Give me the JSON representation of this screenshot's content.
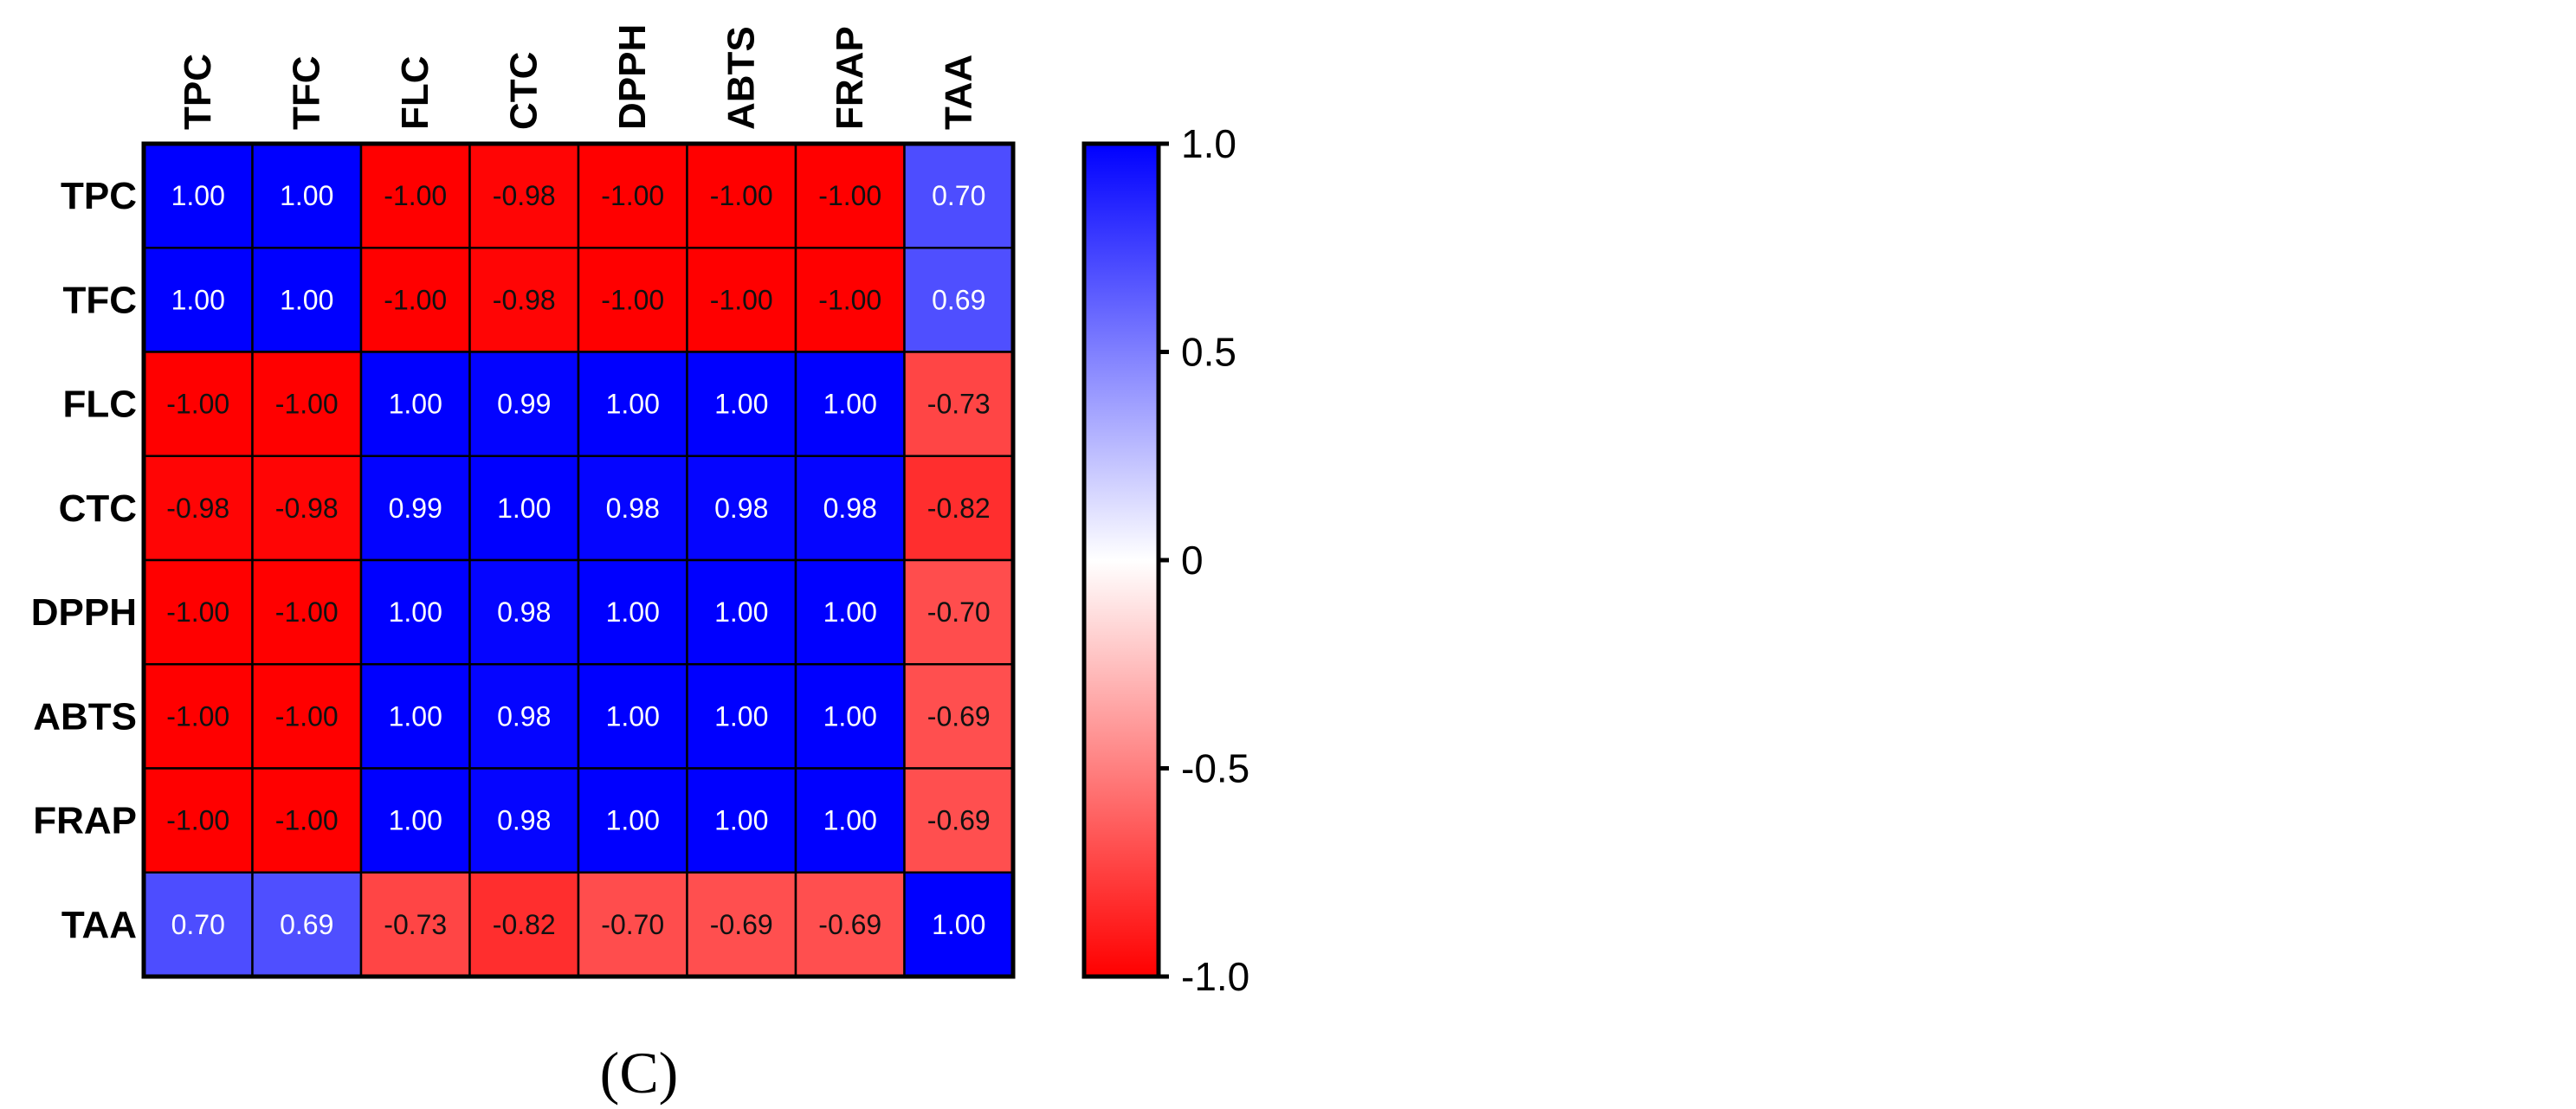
{
  "panel_label": "(C)",
  "chart_data": {
    "type": "heatmap",
    "title": "",
    "xlabel": "",
    "ylabel": "",
    "rows": [
      "TPC",
      "TFC",
      "FLC",
      "CTC",
      "DPPH",
      "ABTS",
      "FRAP",
      "TAA"
    ],
    "columns": [
      "TPC",
      "TFC",
      "FLC",
      "CTC",
      "DPPH",
      "ABTS",
      "FRAP",
      "TAA"
    ],
    "values": [
      [
        1.0,
        1.0,
        -1.0,
        -0.98,
        -1.0,
        -1.0,
        -1.0,
        0.7
      ],
      [
        1.0,
        1.0,
        -1.0,
        -0.98,
        -1.0,
        -1.0,
        -1.0,
        0.69
      ],
      [
        -1.0,
        -1.0,
        1.0,
        0.99,
        1.0,
        1.0,
        1.0,
        -0.73
      ],
      [
        -0.98,
        -0.98,
        0.99,
        1.0,
        0.98,
        0.98,
        0.98,
        -0.82
      ],
      [
        -1.0,
        -1.0,
        1.0,
        0.98,
        1.0,
        1.0,
        1.0,
        -0.7
      ],
      [
        -1.0,
        -1.0,
        1.0,
        0.98,
        1.0,
        1.0,
        1.0,
        -0.69
      ],
      [
        -1.0,
        -1.0,
        1.0,
        0.98,
        1.0,
        1.0,
        1.0,
        -0.69
      ],
      [
        0.7,
        0.69,
        -0.73,
        -0.82,
        -0.7,
        -0.69,
        -0.69,
        1.0
      ]
    ],
    "cell_labels": [
      [
        "1.00",
        "1.00",
        "-1.00",
        "-0.98",
        "-1.00",
        "-1.00",
        "-1.00",
        "0.70"
      ],
      [
        "1.00",
        "1.00",
        "-1.00",
        "-0.98",
        "-1.00",
        "-1.00",
        "-1.00",
        "0.69"
      ],
      [
        "-1.00",
        "-1.00",
        "1.00",
        "0.99",
        "1.00",
        "1.00",
        "1.00",
        "-0.73"
      ],
      [
        "-0.98",
        "-0.98",
        "0.99",
        "1.00",
        "0.98",
        "0.98",
        "0.98",
        "-0.82"
      ],
      [
        "-1.00",
        "-1.00",
        "1.00",
        "0.98",
        "1.00",
        "1.00",
        "1.00",
        "-0.70"
      ],
      [
        "-1.00",
        "-1.00",
        "1.00",
        "0.98",
        "1.00",
        "1.00",
        "1.00",
        "-0.69"
      ],
      [
        "-1.00",
        "-1.00",
        "1.00",
        "0.98",
        "1.00",
        "1.00",
        "1.00",
        "-0.69"
      ],
      [
        "0.70",
        "0.69",
        "-0.73",
        "-0.82",
        "-0.70",
        "-0.69",
        "-0.69",
        "1.00"
      ]
    ],
    "colorbar": {
      "range": [
        -1.0,
        1.0
      ],
      "ticks": [
        1.0,
        0.5,
        0,
        -0.5,
        -1.0
      ],
      "tick_labels": [
        "1.0",
        "0.5",
        "0",
        "-0.5",
        "-1.0"
      ],
      "colors": {
        "negative": "#ff0000",
        "zero": "#ffffff",
        "positive": "#0000ff"
      }
    },
    "column_labels_position": "top",
    "column_labels_rotation": "vertical",
    "grid": true
  }
}
